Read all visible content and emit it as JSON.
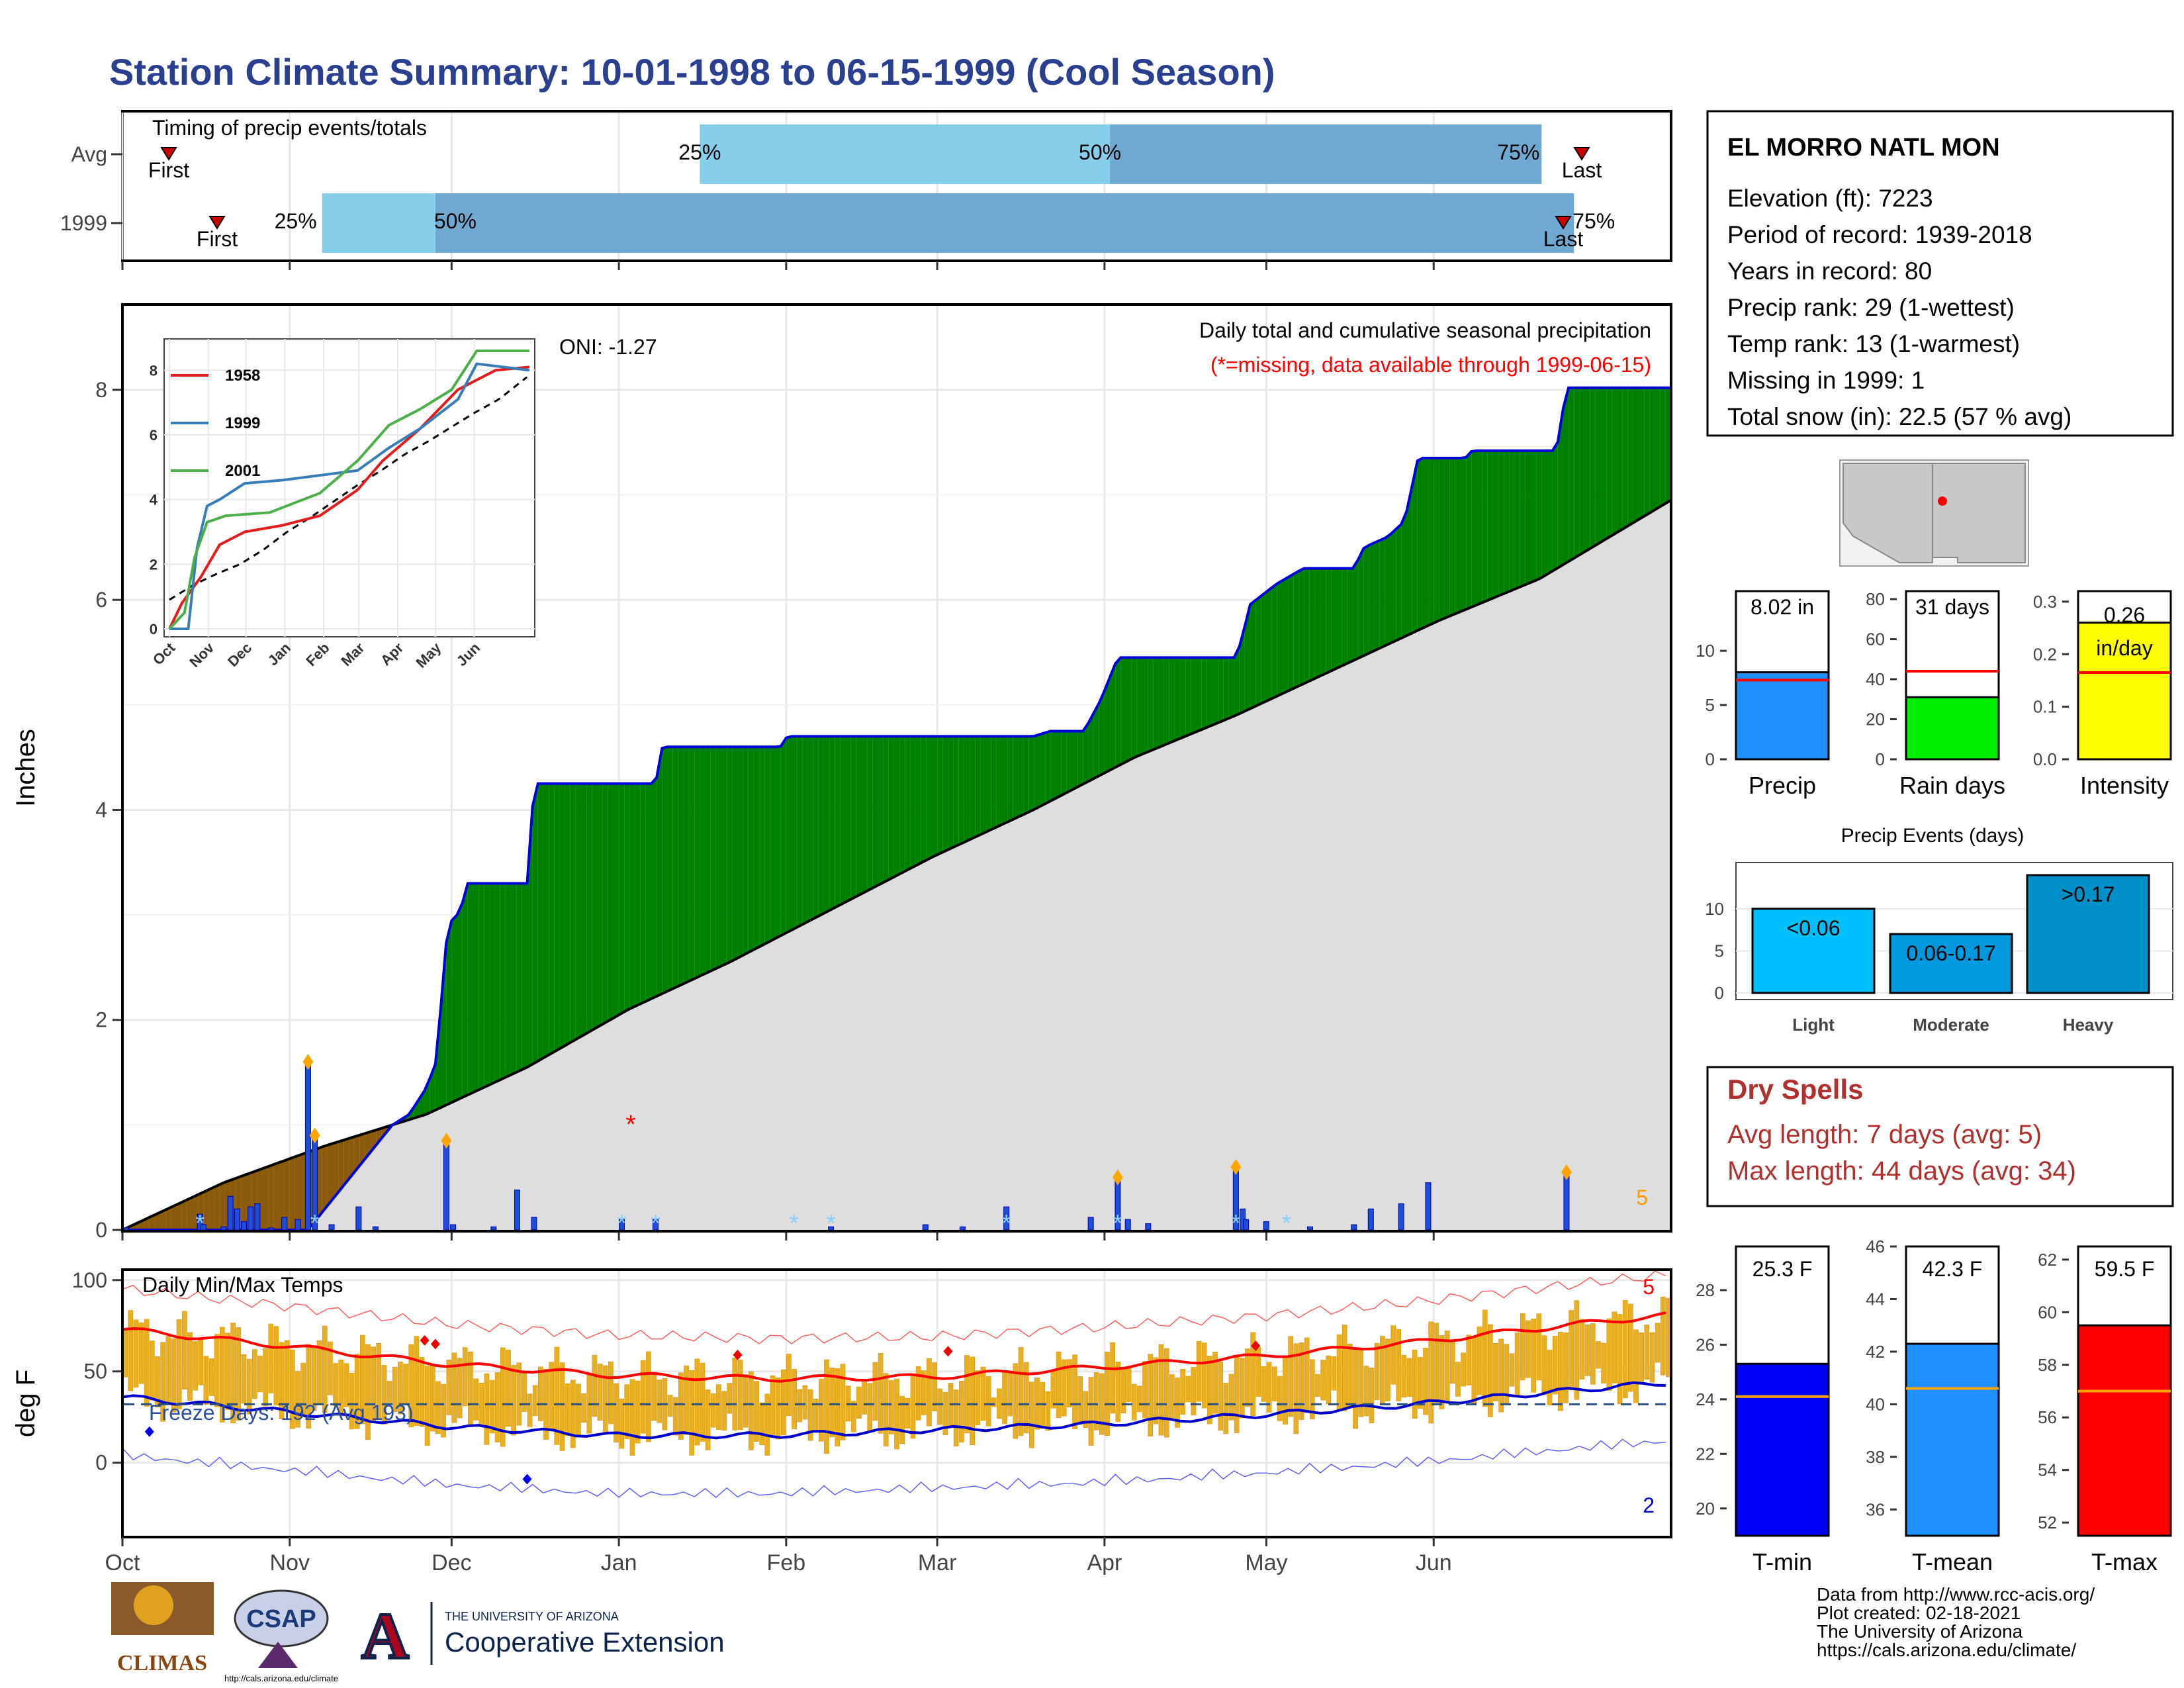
{
  "title": "Station Climate Summary: 10-01-1998 to 06-15-1999 (Cool Season)",
  "months": [
    "Oct",
    "Nov",
    "Dec",
    "Jan",
    "Feb",
    "Mar",
    "Apr",
    "May",
    "Jun"
  ],
  "timing": {
    "label": "Timing of precip events/totals",
    "rows": [
      {
        "name": "Avg",
        "first": "First",
        "last": "Last",
        "first_day": 12,
        "p25_day": 107,
        "p50_day": 183,
        "p75_day": 263,
        "last_day": 369
      },
      {
        "name": "1999",
        "first": "First",
        "last": "Last",
        "first_day": 23,
        "p25_day": 37,
        "p50_day": 58,
        "p75_day": 269,
        "last_day": 365
      }
    ],
    "p25": "25%",
    "p50": "50%",
    "p75": "75%"
  },
  "precip_panel": {
    "ylabel": "Inches",
    "yticks": [
      0,
      2,
      4,
      6,
      8
    ],
    "ylim": [
      0,
      8.8
    ],
    "legend_title": "Daily total and cumulative seasonal precipitation",
    "missing_note": "(*=missing, data available through 1999-06-15)",
    "oni": "ONI: -1.27",
    "corner_label": "5",
    "colors": {
      "above": "#008000",
      "below": "#8b5a0a",
      "avg_fill": "#dedede",
      "line": "#0000dd",
      "bars": "#1e4ddb"
    }
  },
  "inset": {
    "yticks": [
      0,
      2,
      4,
      6,
      8
    ],
    "years": [
      {
        "name": "1958",
        "color": "#e41a1c"
      },
      {
        "name": "1999",
        "color": "#377eb8"
      },
      {
        "name": "2001",
        "color": "#4daf4a"
      }
    ]
  },
  "temp_panel": {
    "ylabel": "deg F",
    "label": "Daily Min/Max Temps",
    "freeze": "Freeze Days: 192 (Avg 193)",
    "yticks": [
      0,
      50,
      100
    ],
    "ylim": [
      -40,
      105
    ],
    "top_corner": "5",
    "bottom_corner": "2"
  },
  "station": {
    "name": "EL MORRO NATL MON",
    "lines": [
      "Elevation (ft): 7223",
      "Period of record: 1939-2018",
      "Years in record: 80",
      "Precip rank: 29 (1-wettest)",
      "Temp rank: 13 (1-warmest)",
      "Missing in 1999: 1",
      "Total snow (in): 22.5 (57 % avg)"
    ]
  },
  "chart_data": [
    {
      "type": "area",
      "title": "Daily total and cumulative seasonal precipitation",
      "ylabel": "Inches",
      "ylim": [
        0,
        8.8
      ],
      "cumulative_1999": [
        [
          0,
          0
        ],
        [
          55,
          0
        ],
        [
          80,
          1.0
        ],
        [
          85,
          1.1
        ],
        [
          90,
          1.35
        ],
        [
          93,
          1.6
        ],
        [
          96,
          2.75
        ],
        [
          98,
          3.0
        ],
        [
          100,
          3.0
        ],
        [
          102,
          3.3
        ],
        [
          120,
          3.3
        ],
        [
          122,
          4.25
        ],
        [
          158,
          4.25
        ],
        [
          160,
          4.6
        ],
        [
          195,
          4.6
        ],
        [
          197,
          4.7
        ],
        [
          270,
          4.7
        ],
        [
          275,
          4.75
        ],
        [
          285,
          4.75
        ],
        [
          290,
          5.05
        ],
        [
          295,
          5.45
        ],
        [
          330,
          5.45
        ],
        [
          332,
          5.65
        ],
        [
          334,
          5.95
        ],
        [
          336,
          6.0
        ],
        [
          342,
          6.15
        ],
        [
          350,
          6.3
        ],
        [
          365,
          6.3
        ],
        [
          368,
          6.5
        ],
        [
          375,
          6.6
        ],
        [
          380,
          6.75
        ],
        [
          384,
          7.35
        ],
        [
          398,
          7.35
        ],
        [
          400,
          7.42
        ],
        [
          425,
          7.42
        ],
        [
          428,
          8.02
        ],
        [
          459,
          8.02
        ]
      ],
      "average_cumulative": [
        [
          0,
          0
        ],
        [
          30,
          0.45
        ],
        [
          60,
          0.8
        ],
        [
          90,
          1.1
        ],
        [
          120,
          1.55
        ],
        [
          150,
          2.1
        ],
        [
          180,
          2.55
        ],
        [
          210,
          3.05
        ],
        [
          240,
          3.55
        ],
        [
          270,
          4.0
        ],
        [
          300,
          4.5
        ],
        [
          330,
          4.9
        ],
        [
          360,
          5.35
        ],
        [
          390,
          5.8
        ],
        [
          420,
          6.2
        ],
        [
          459,
          6.95
        ]
      ],
      "daily_bars": [
        [
          1,
          0.02
        ],
        [
          23,
          0.15
        ],
        [
          24,
          0.05
        ],
        [
          30,
          0.03
        ],
        [
          32,
          0.32
        ],
        [
          34,
          0.2
        ],
        [
          36,
          0.08
        ],
        [
          38,
          0.22
        ],
        [
          40,
          0.25
        ],
        [
          44,
          0.02
        ],
        [
          48,
          0.12
        ],
        [
          52,
          0.1
        ],
        [
          55,
          1.6
        ],
        [
          57,
          0.9
        ],
        [
          62,
          0.05
        ],
        [
          70,
          0.22
        ],
        [
          75,
          0.03
        ],
        [
          96,
          0.85
        ],
        [
          98,
          0.05
        ],
        [
          110,
          0.03
        ],
        [
          117,
          0.38
        ],
        [
          122,
          0.12
        ],
        [
          148,
          0.1
        ],
        [
          158,
          0.1
        ],
        [
          210,
          0.03
        ],
        [
          238,
          0.05
        ],
        [
          249,
          0.03
        ],
        [
          262,
          0.22
        ],
        [
          287,
          0.12
        ],
        [
          295,
          0.5
        ],
        [
          298,
          0.1
        ],
        [
          304,
          0.06
        ],
        [
          330,
          0.6
        ],
        [
          332,
          0.2
        ],
        [
          333,
          0.1
        ],
        [
          339,
          0.08
        ],
        [
          352,
          0.03
        ],
        [
          365,
          0.05
        ],
        [
          370,
          0.2
        ],
        [
          379,
          0.25
        ],
        [
          387,
          0.45
        ],
        [
          428,
          0.55
        ]
      ],
      "series": [
        {
          "name": "1999"
        },
        {
          "name": "average"
        }
      ]
    },
    {
      "type": "line",
      "title": "Daily Min/Max Temps",
      "ylabel": "deg F",
      "ylim": [
        -40,
        105
      ],
      "avg_max": [
        [
          0,
          73
        ],
        [
          30,
          64
        ],
        [
          60,
          54
        ],
        [
          90,
          48
        ],
        [
          120,
          46
        ],
        [
          150,
          47
        ],
        [
          180,
          52
        ],
        [
          210,
          58
        ],
        [
          240,
          66
        ],
        [
          270,
          76
        ],
        [
          287,
          81
        ]
      ],
      "avg_min": [
        [
          0,
          36
        ],
        [
          30,
          28
        ],
        [
          60,
          20
        ],
        [
          90,
          15
        ],
        [
          120,
          15
        ],
        [
          150,
          18
        ],
        [
          180,
          21
        ],
        [
          210,
          26
        ],
        [
          240,
          32
        ],
        [
          270,
          40
        ],
        [
          287,
          44
        ]
      ],
      "freeze_threshold": 32
    },
    {
      "type": "bar",
      "title": "",
      "categories": [
        "Precip",
        "Rain days",
        "Intensity"
      ],
      "values": [
        8.02,
        31,
        0.26
      ],
      "labels": [
        "8.02 in",
        "31 days",
        "0.26 in/day"
      ],
      "averages": [
        7.3,
        44,
        0.165
      ],
      "ylims": [
        [
          0,
          15.5
        ],
        [
          0,
          84
        ],
        [
          0,
          0.32
        ]
      ],
      "yticks": [
        [
          0,
          5,
          10
        ],
        [
          0,
          20,
          40,
          60,
          80
        ],
        [
          0.0,
          0.1,
          0.2,
          0.3
        ]
      ],
      "colors": [
        "#1e90ff",
        "#00ee00",
        "#ffff00"
      ]
    },
    {
      "type": "bar",
      "title": "Precip Events (days)",
      "categories": [
        "Light",
        "Moderate",
        "Heavy"
      ],
      "values": [
        10,
        7,
        14
      ],
      "labels": [
        "<0.06",
        "0.06-0.17",
        ">0.17"
      ],
      "ylim": [
        0,
        15.5
      ],
      "yticks": [
        0,
        5,
        10
      ],
      "colors": [
        "#00bfff",
        "#0099dd",
        "#0090c8"
      ]
    },
    {
      "type": "bar",
      "title": "",
      "categories": [
        "T-min",
        "T-mean",
        "T-max"
      ],
      "values": [
        25.3,
        42.3,
        59.5
      ],
      "labels": [
        "25.3 F",
        "42.3 F",
        "59.5 F"
      ],
      "averages": [
        24.1,
        40.6,
        57.0
      ],
      "ylims": [
        [
          19,
          29.6
        ],
        [
          35,
          46
        ],
        [
          51.5,
          62.5
        ]
      ],
      "yticks": [
        [
          20,
          22,
          24,
          26,
          28
        ],
        [
          36,
          38,
          40,
          42,
          44,
          46
        ],
        [
          52,
          54,
          56,
          58,
          60,
          62
        ]
      ],
      "colors": [
        "#0000ff",
        "#1e90ff",
        "#ff0000"
      ]
    }
  ],
  "dry_spells": {
    "title": "Dry Spells",
    "avg": "Avg length: 7 days (avg: 5)",
    "max": "Max length: 44 days (avg: 34)"
  },
  "footer": {
    "lines": [
      "Data from http://www.rcc-acis.org/",
      "Plot created: 02-18-2021",
      "The University of Arizona",
      "https://cals.arizona.edu/climate/"
    ],
    "logos": {
      "climas": "CLIMAS",
      "csap": "CSAP",
      "csap_url": "http://cals.arizona.edu/climate",
      "ua_small": "THE UNIVERSITY OF ARIZONA",
      "ua_big": "Cooperative Extension"
    }
  }
}
